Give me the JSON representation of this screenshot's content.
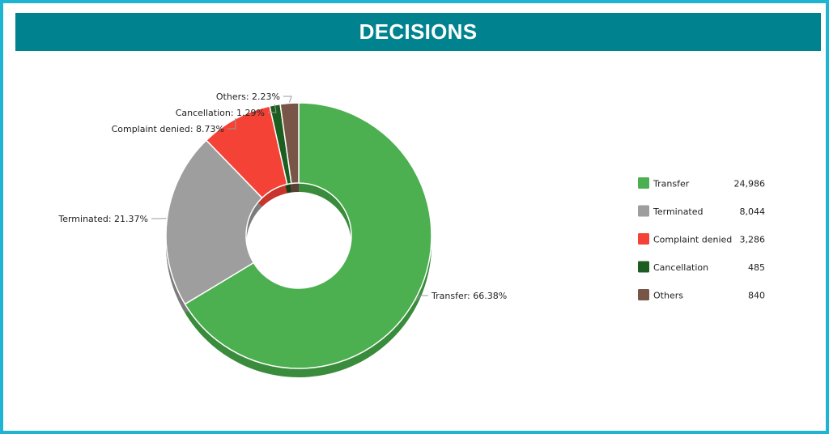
{
  "header": {
    "title": "DECISIONS"
  },
  "chart_data": {
    "type": "pie",
    "variant": "donut-3d",
    "title": "DECISIONS",
    "legend_position": "right",
    "slices": [
      {
        "name": "Transfer",
        "value": 24986,
        "value_label": "24,986",
        "percent_label": "66.38%",
        "color": "#4caf50",
        "side_color": "#3a8c3d"
      },
      {
        "name": "Terminated",
        "value": 8044,
        "value_label": "8,044",
        "percent_label": "21.37%",
        "color": "#9e9e9e",
        "side_color": "#7c7c7c"
      },
      {
        "name": "Complaint denied",
        "value": 3286,
        "value_label": "3,286",
        "percent_label": "8.73%",
        "color": "#f44336",
        "side_color": "#c6362c"
      },
      {
        "name": "Cancellation",
        "value": 485,
        "value_label": "485",
        "percent_label": "1.29%",
        "color": "#1b5e20",
        "side_color": "#134516"
      },
      {
        "name": "Others",
        "value": 840,
        "value_label": "840",
        "percent_label": "2.23%",
        "color": "#795548",
        "side_color": "#5c4037"
      }
    ]
  }
}
